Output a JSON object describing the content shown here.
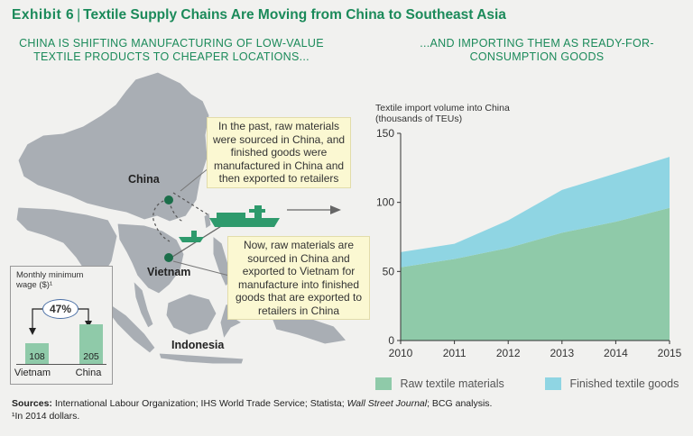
{
  "header": {
    "exhibit": "Exhibit 6",
    "title": "Textile Supply Chains Are Moving from China to Southeast Asia"
  },
  "left_panel": {
    "heading_line1": "CHINA IS SHIFTING MANUFACTURING OF LOW-VALUE",
    "heading_line2": "TEXTILE PRODUCTS TO CHEAPER LOCATIONS...",
    "callout_past_lines": [
      "In the past, raw materials",
      "were sourced in China, and",
      "finished goods were",
      "manufactured in China and",
      "then exported to retailers"
    ],
    "callout_now_lines": [
      "Now, raw materials are",
      "sourced in China and",
      "exported to Vietnam for",
      "manufacture into finished",
      "goods that are exported to",
      "retailers in China"
    ],
    "labels": {
      "china": "China",
      "vietnam": "Vietnam",
      "indonesia": "Indonesia"
    },
    "colors": {
      "land": "#a9aeb4",
      "route_dot": "#1b6e4a",
      "ship": "#2e9a6c",
      "arrow": "#666666"
    }
  },
  "wage_inset": {
    "title_line1": "Monthly minimum",
    "title_line2": "wage ($)¹",
    "change": "47%",
    "categories": [
      "Vietnam",
      "China"
    ],
    "values": [
      108,
      205
    ],
    "value_labels": [
      "108",
      "205"
    ],
    "bar_color": "#8fcaa9"
  },
  "right_panel": {
    "heading_line1": "...AND IMPORTING THEM AS READY-FOR-",
    "heading_line2": "CONSUMPTION GOODS"
  },
  "chart_data": {
    "type": "area",
    "ylabel_line1": "Textile import volume into China",
    "ylabel_line2": "(thousands of TEUs)",
    "x": [
      2010,
      2011,
      2012,
      2013,
      2014,
      2015
    ],
    "x_tick_labels": [
      "2010",
      "2011",
      "2012",
      "2013",
      "2014",
      "2015"
    ],
    "y_ticks": [
      0,
      50,
      100,
      150
    ],
    "y_tick_labels": [
      "0",
      "50",
      "100",
      "150"
    ],
    "ylim": [
      0,
      150
    ],
    "stacked": true,
    "series": [
      {
        "name": "Raw textile materials",
        "values": [
          53,
          59,
          67,
          78,
          86,
          96
        ],
        "color": "#8fcaa9"
      },
      {
        "name": "Finished textile goods",
        "values": [
          11,
          11,
          20,
          31,
          35,
          37
        ],
        "color": "#8fd5e3"
      }
    ],
    "grid": false,
    "legend": "bottom"
  },
  "footer": {
    "sources_label": "Sources:",
    "sources_pre": " International Labour Organization; IHS World Trade Service; Statista; ",
    "sources_italic": "Wall Street Journal",
    "sources_post": "; BCG analysis.",
    "footnote": "¹In 2014 dollars."
  }
}
